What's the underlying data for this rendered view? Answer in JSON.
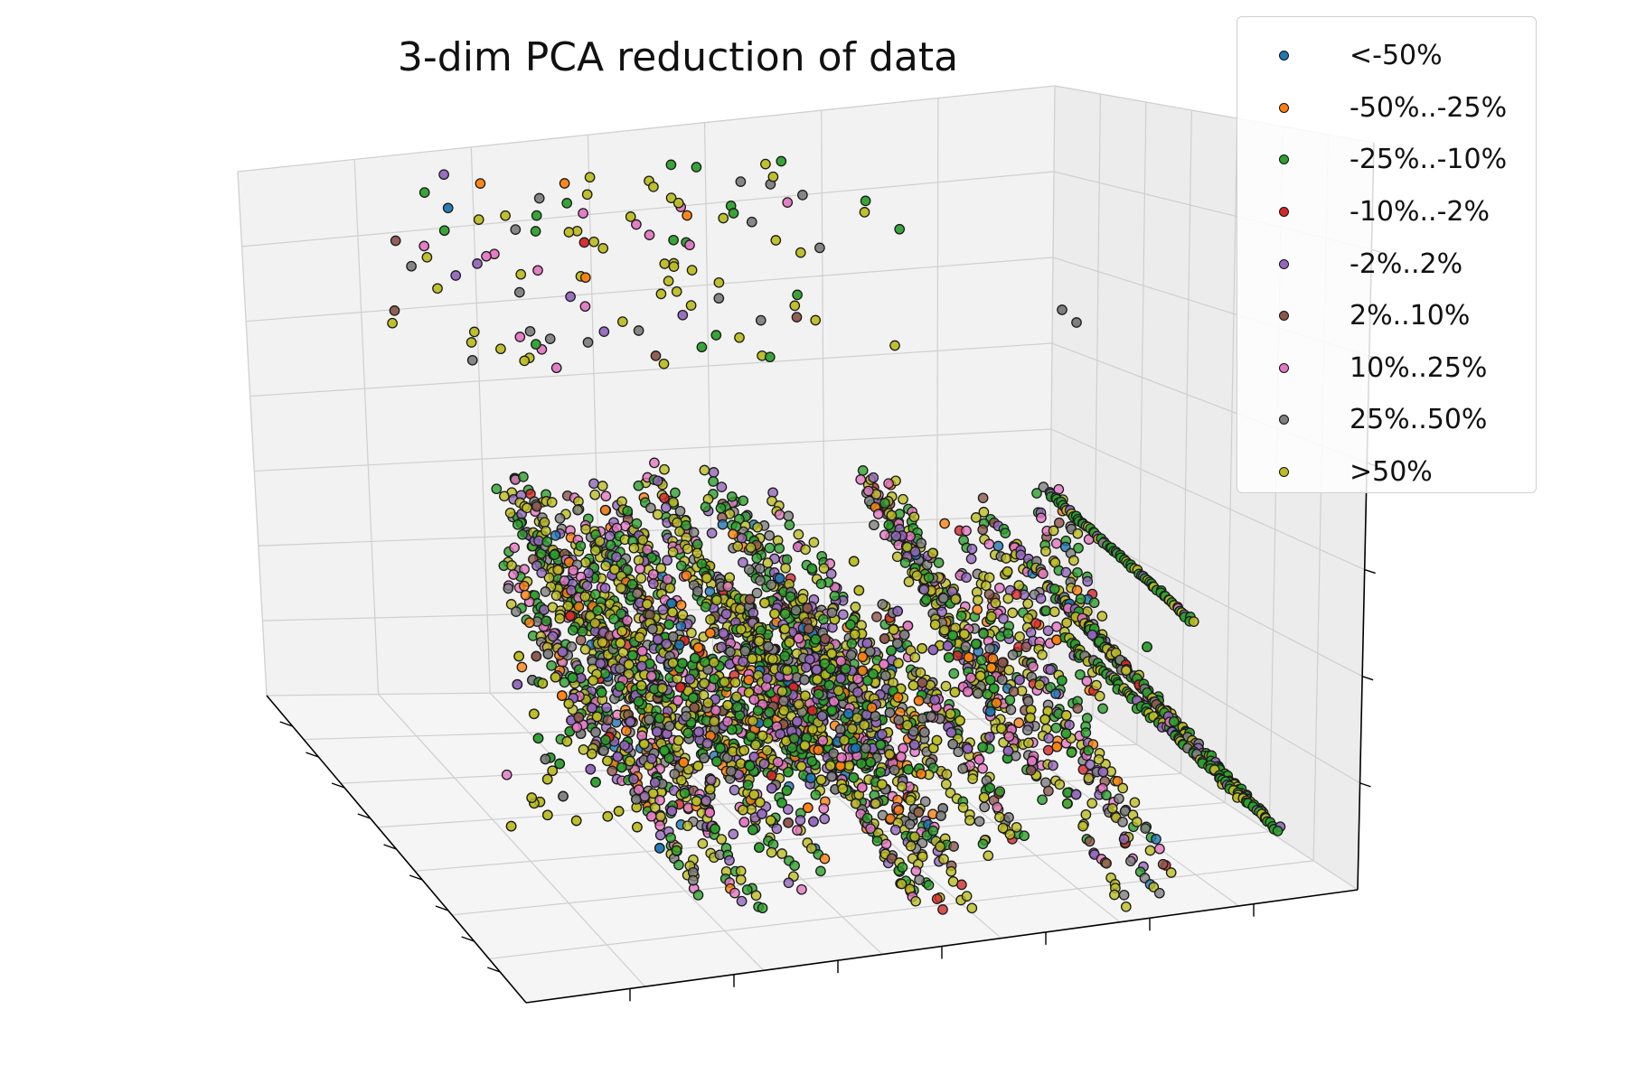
{
  "chart_data": {
    "type": "scatter",
    "projection": "3d",
    "title": "3-dim PCA reduction of data",
    "xlabel": "",
    "ylabel": "",
    "zlabel": "",
    "grid": true,
    "legend_position": "top-right",
    "series": [
      {
        "name": "<-50%",
        "color": "#1f77b4"
      },
      {
        "name": "-50%..-25%",
        "color": "#ff7f0e"
      },
      {
        "name": "-25%..-10%",
        "color": "#2ca02c"
      },
      {
        "name": "-10%..-2%",
        "color": "#d62728"
      },
      {
        "name": "-2%..2%",
        "color": "#9467bd"
      },
      {
        "name": "2%..10%",
        "color": "#8c564b"
      },
      {
        "name": "10%..25%",
        "color": "#e377c2"
      },
      {
        "name": "25%..50%",
        "color": "#7f7f7f"
      },
      {
        "name": ">50%",
        "color": "#bcbd22"
      }
    ],
    "point_layers": [
      {
        "weights": [
          1,
          1,
          8,
          1,
          3,
          2,
          3,
          6,
          14
        ],
        "count": 110
      },
      {
        "weights": [
          1,
          2,
          10,
          1,
          6,
          2,
          5,
          6,
          16
        ],
        "count": 1500
      },
      {
        "weights": [
          0,
          0,
          14,
          0,
          2,
          0,
          1,
          3,
          9
        ],
        "count": 300
      }
    ]
  }
}
